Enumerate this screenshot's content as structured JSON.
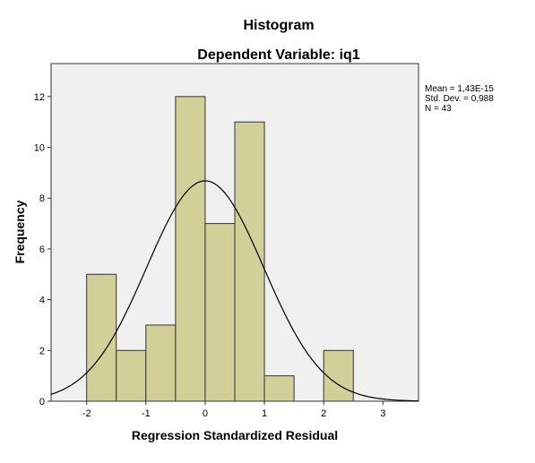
{
  "chart_data": {
    "type": "bar",
    "title": "Histogram",
    "subtitle": "Dependent Variable: iq1",
    "xlabel": "Regression Standardized Residual",
    "ylabel": "Frequency",
    "xlim": [
      -2.6,
      3.6
    ],
    "ylim": [
      0,
      13.3
    ],
    "x_ticks": [
      "-2",
      "-1",
      "0",
      "1",
      "2",
      "3"
    ],
    "y_ticks": [
      "0",
      "2",
      "4",
      "6",
      "8",
      "10",
      "12"
    ],
    "bins": [
      {
        "x0": -2.0,
        "x1": -1.5,
        "value": 5
      },
      {
        "x0": -1.5,
        "x1": -1.0,
        "value": 2
      },
      {
        "x0": -1.0,
        "x1": -0.5,
        "value": 3
      },
      {
        "x0": -0.5,
        "x1": 0.0,
        "value": 12
      },
      {
        "x0": 0.0,
        "x1": 0.5,
        "value": 7
      },
      {
        "x0": 0.5,
        "x1": 1.0,
        "value": 11
      },
      {
        "x0": 1.0,
        "x1": 1.5,
        "value": 1
      },
      {
        "x0": 2.0,
        "x1": 2.5,
        "value": 2
      }
    ],
    "normal_curve": {
      "mean": 0,
      "sd": 0.988,
      "n": 43,
      "bin_width": 0.5
    },
    "stats": [
      "Mean = 1,43E-15",
      "Std. Dev. = 0,988",
      "N = 43"
    ],
    "colors": {
      "bar_fill": "#d3cf98",
      "bar_stroke": "#333333",
      "plot_bg": "#f0f0f0",
      "curve": "#000000"
    },
    "grid": false
  }
}
